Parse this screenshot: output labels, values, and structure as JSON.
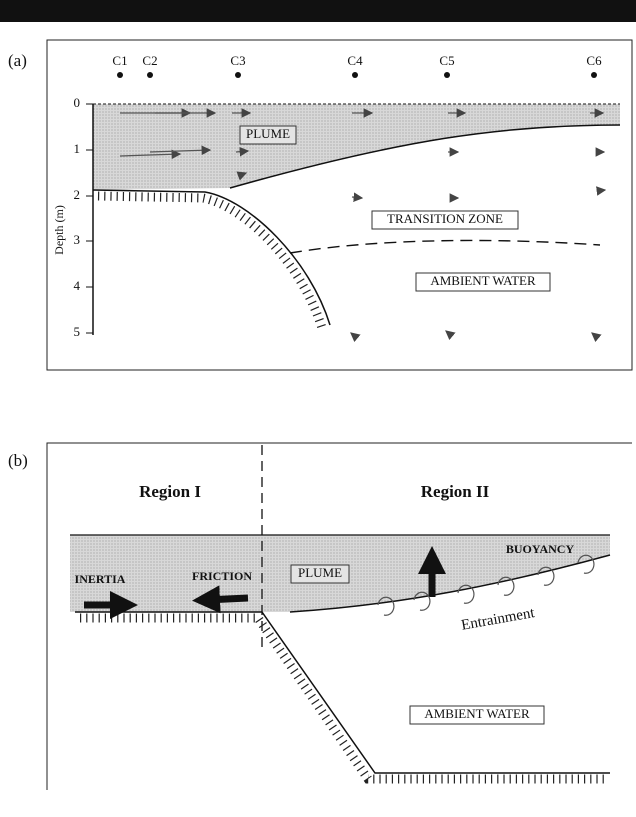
{
  "panel_a": {
    "label": "(a)",
    "stations": [
      "C1",
      "C2",
      "C3",
      "C4",
      "C5",
      "C6"
    ],
    "depth_ticks": [
      0,
      1,
      2,
      3,
      4,
      5
    ],
    "axis_label": "Depth (m)",
    "zones": [
      "PLUME",
      "TRANSITION ZONE",
      "AMBIENT WATER"
    ]
  },
  "panel_b": {
    "label": "(b)",
    "regions": [
      "Region I",
      "Region II"
    ],
    "forces": [
      "INERTIA",
      "FRICTION",
      "BUOYANCY"
    ],
    "plume": "PLUME",
    "entrainment": "Entrainment",
    "ambient": "AMBIENT WATER"
  }
}
